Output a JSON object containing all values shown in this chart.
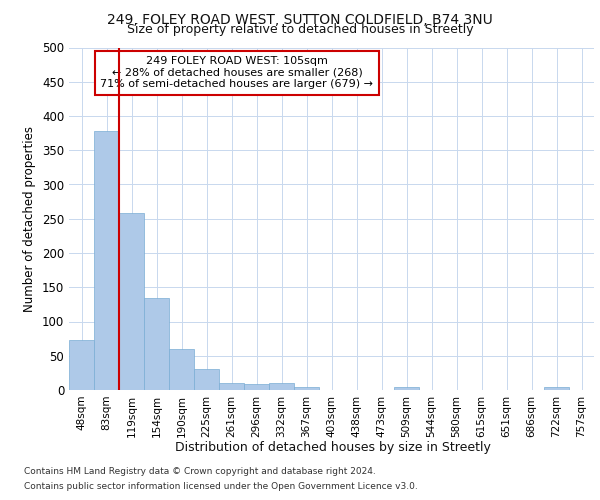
{
  "title1": "249, FOLEY ROAD WEST, SUTTON COLDFIELD, B74 3NU",
  "title2": "Size of property relative to detached houses in Streetly",
  "xlabel": "Distribution of detached houses by size in Streetly",
  "ylabel": "Number of detached properties",
  "categories": [
    "48sqm",
    "83sqm",
    "119sqm",
    "154sqm",
    "190sqm",
    "225sqm",
    "261sqm",
    "296sqm",
    "332sqm",
    "367sqm",
    "403sqm",
    "438sqm",
    "473sqm",
    "509sqm",
    "544sqm",
    "580sqm",
    "615sqm",
    "651sqm",
    "686sqm",
    "722sqm",
    "757sqm"
  ],
  "values": [
    73,
    378,
    258,
    135,
    60,
    30,
    10,
    9,
    10,
    5,
    0,
    0,
    0,
    5,
    0,
    0,
    0,
    0,
    0,
    4,
    0
  ],
  "bar_color": "#aec9e8",
  "bar_edge_color": "#7aadd4",
  "vline_color": "#cc0000",
  "annotation_line1": "249 FOLEY ROAD WEST: 105sqm",
  "annotation_line2": "← 28% of detached houses are smaller (268)",
  "annotation_line3": "71% of semi-detached houses are larger (679) →",
  "annotation_box_color": "#ffffff",
  "annotation_box_edge_color": "#cc0000",
  "ylim": [
    0,
    500
  ],
  "yticks": [
    0,
    50,
    100,
    150,
    200,
    250,
    300,
    350,
    400,
    450,
    500
  ],
  "footer1": "Contains HM Land Registry data © Crown copyright and database right 2024.",
  "footer2": "Contains public sector information licensed under the Open Government Licence v3.0.",
  "bg_color": "#ffffff",
  "grid_color": "#c8d8ee"
}
